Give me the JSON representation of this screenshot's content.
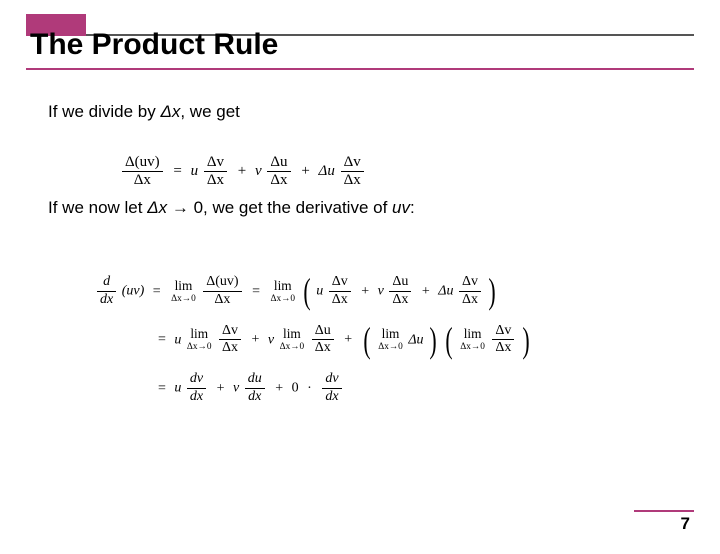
{
  "colors": {
    "accent": "#b03a7a",
    "rule": "#555",
    "text": "#000000",
    "background": "#ffffff"
  },
  "title": "The Product Rule",
  "line1_pre": "If we divide by ",
  "line1_var": "Δx",
  "line1_post": ", we get",
  "line2_pre": "If we now let ",
  "line2_var": "Δx",
  "line2_arrow": " → ",
  "line2_zero": "0, we get the derivative of ",
  "line2_uv": "uv",
  "line2_post": ":",
  "page_number": "7",
  "eq1": {
    "lhs_num": "Δ(uv)",
    "lhs_den": "Δx",
    "t1_coef": "u",
    "t1_num": "Δv",
    "t1_den": "Δx",
    "t2_coef": "v",
    "t2_num": "Δu",
    "t2_den": "Δx",
    "t3_coef": "Δu",
    "t3_num": "Δv",
    "t3_den": "Δx"
  },
  "eq2": {
    "d_num": "d",
    "d_den": "dx",
    "uv": "(uv)",
    "lim_top": "lim",
    "lim_bot": "Δx→0",
    "r1_lhs_num": "Δ(uv)",
    "r1_lhs_den": "Δx",
    "p1_coef": "u",
    "p1_num": "Δv",
    "p1_den": "Δx",
    "p2_coef": "v",
    "p2_num": "Δu",
    "p2_den": "Δx",
    "p3_coef": "Δu",
    "p3_num": "Δv",
    "p3_den": "Δx",
    "r2a_coef": "u",
    "r2a_num": "Δv",
    "r2a_den": "Δx",
    "r2b_coef": "v",
    "r2b_num": "Δu",
    "r2b_den": "Δx",
    "r2c_inner": "Δu",
    "r2d_num": "Δv",
    "r2d_den": "Δx",
    "r3a_coef": "u",
    "r3a_num": "dv",
    "r3a_den": "dx",
    "r3b_coef": "v",
    "r3b_num": "du",
    "r3b_den": "dx",
    "r3c_zero": "0",
    "r3c_dot": "·",
    "r3c_num": "dv",
    "r3c_den": "dx"
  }
}
